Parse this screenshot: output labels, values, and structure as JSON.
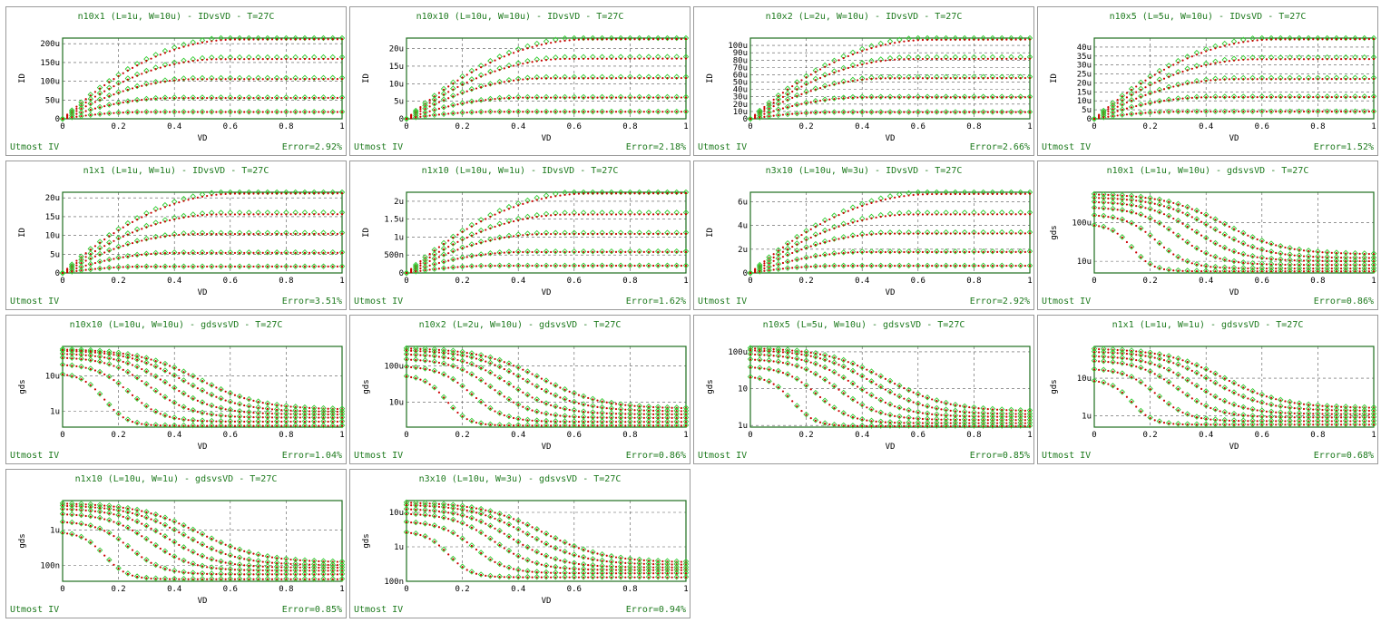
{
  "colors": {
    "measured": "#33cc33",
    "simulated": "#cc0000",
    "frame": "#1e6e1e",
    "text": "#1e7a1e"
  },
  "markers": {
    "measured": "diamond-icon",
    "simulated": "dot-icon"
  },
  "chart_data": [
    {
      "type": "line",
      "title": "n10x1 (L=1u, W=10u) - IDvsVD - T=27C",
      "xlabel": "VD",
      "ylabel": "ID",
      "scale": "linear",
      "ylim": [
        0,
        215
      ],
      "yticks": [
        0,
        50,
        100,
        150,
        200
      ],
      "yticklabels": [
        "0",
        "50u",
        "100u",
        "150u",
        "200u"
      ],
      "xlim": [
        0,
        1
      ],
      "xticks": [
        0,
        0.2,
        0.4,
        0.6,
        0.8,
        1
      ],
      "xticklabels": [
        "0",
        "0.2",
        "0.4",
        "0.6",
        "0.8",
        "1"
      ],
      "vdsat": [
        0.62,
        0.56,
        0.48,
        0.4,
        0.3
      ],
      "ysat": [
        210,
        158,
        105,
        55,
        18
      ],
      "footer_left": "Utmost IV",
      "footer_right": "Error=2.92%"
    },
    {
      "type": "line",
      "title": "n10x10 (L=10u, W=10u) - IDvsVD - T=27C",
      "xlabel": "VD",
      "ylabel": "ID",
      "scale": "linear",
      "ylim": [
        0,
        23
      ],
      "yticks": [
        0,
        5,
        10,
        15,
        20
      ],
      "yticklabels": [
        "0",
        "5u",
        "10u",
        "15u",
        "20u"
      ],
      "xlim": [
        0,
        1
      ],
      "xticks": [
        0,
        0.2,
        0.4,
        0.6,
        0.8,
        1
      ],
      "xticklabels": [
        "0",
        "0.2",
        "0.4",
        "0.6",
        "0.8",
        "1"
      ],
      "vdsat": [
        0.65,
        0.58,
        0.5,
        0.42,
        0.32
      ],
      "ysat": [
        22.5,
        17,
        11.5,
        6,
        2
      ],
      "footer_left": "Utmost IV",
      "footer_right": "Error=2.18%"
    },
    {
      "type": "line",
      "title": "n10x2 (L=2u, W=10u) - IDvsVD - T=27C",
      "xlabel": "VD",
      "ylabel": "ID",
      "scale": "linear",
      "ylim": [
        0,
        110
      ],
      "yticks": [
        0,
        10,
        20,
        30,
        40,
        50,
        60,
        70,
        80,
        90,
        100
      ],
      "yticklabels": [
        "0",
        "10u",
        "20u",
        "30u",
        "40u",
        "50u",
        "60u",
        "70u",
        "80u",
        "90u",
        "100u"
      ],
      "xlim": [
        0,
        1
      ],
      "xticks": [
        0,
        0.2,
        0.4,
        0.6,
        0.8,
        1
      ],
      "xticklabels": [
        "0",
        "0.2",
        "0.4",
        "0.6",
        "0.8",
        "1"
      ],
      "vdsat": [
        0.64,
        0.57,
        0.49,
        0.41,
        0.31
      ],
      "ysat": [
        107,
        81,
        55,
        29,
        9
      ],
      "footer_left": "Utmost IV",
      "footer_right": "Error=2.66%"
    },
    {
      "type": "line",
      "title": "n10x5 (L=5u, W=10u) - IDvsVD - T=27C",
      "xlabel": "VD",
      "ylabel": "ID",
      "scale": "linear",
      "ylim": [
        0,
        45
      ],
      "yticks": [
        0,
        5,
        10,
        15,
        20,
        25,
        30,
        35,
        40
      ],
      "yticklabels": [
        "0",
        "5u",
        "10u",
        "15u",
        "20u",
        "25u",
        "30u",
        "35u",
        "40u"
      ],
      "xlim": [
        0,
        1
      ],
      "xticks": [
        0,
        0.2,
        0.4,
        0.6,
        0.8,
        1
      ],
      "xticklabels": [
        "0",
        "0.2",
        "0.4",
        "0.6",
        "0.8",
        "1"
      ],
      "vdsat": [
        0.65,
        0.58,
        0.5,
        0.42,
        0.32
      ],
      "ysat": [
        44,
        33,
        22,
        12,
        4
      ],
      "footer_left": "Utmost IV",
      "footer_right": "Error=1.52%"
    },
    {
      "type": "line",
      "title": "n1x1 (L=1u, W=1u) - IDvsVD - T=27C",
      "xlabel": "VD",
      "ylabel": "ID",
      "scale": "linear",
      "ylim": [
        0,
        21.5
      ],
      "yticks": [
        0,
        5,
        10,
        15,
        20
      ],
      "yticklabels": [
        "0",
        "5u",
        "10u",
        "15u",
        "20u"
      ],
      "xlim": [
        0,
        1
      ],
      "xticks": [
        0,
        0.2,
        0.4,
        0.6,
        0.8,
        1
      ],
      "xticklabels": [
        "0",
        "0.2",
        "0.4",
        "0.6",
        "0.8",
        "1"
      ],
      "vdsat": [
        0.62,
        0.56,
        0.48,
        0.4,
        0.3
      ],
      "ysat": [
        21,
        15.5,
        10.3,
        5.3,
        1.7
      ],
      "footer_left": "Utmost IV",
      "footer_right": "Error=3.51%"
    },
    {
      "type": "line",
      "title": "n1x10 (L=10u, W=1u) - IDvsVD - T=27C",
      "xlabel": "VD",
      "ylabel": "ID",
      "scale": "linear",
      "ylim": [
        0,
        2.25
      ],
      "yticks": [
        0,
        0.5,
        1,
        1.5,
        2
      ],
      "yticklabels": [
        "0",
        "500n",
        "1u",
        "1.5u",
        "2u"
      ],
      "xlim": [
        0,
        1
      ],
      "xticks": [
        0,
        0.2,
        0.4,
        0.6,
        0.8,
        1
      ],
      "xticklabels": [
        "0",
        "0.2",
        "0.4",
        "0.6",
        "0.8",
        "1"
      ],
      "vdsat": [
        0.65,
        0.58,
        0.5,
        0.42,
        0.32
      ],
      "ysat": [
        2.2,
        1.62,
        1.08,
        0.58,
        0.2
      ],
      "footer_left": "Utmost IV",
      "footer_right": "Error=1.62%"
    },
    {
      "type": "line",
      "title": "n3x10 (L=10u, W=3u) - IDvsVD - T=27C",
      "xlabel": "VD",
      "ylabel": "ID",
      "scale": "linear",
      "ylim": [
        0,
        6.8
      ],
      "yticks": [
        0,
        2,
        4,
        6
      ],
      "yticklabels": [
        "0",
        "2u",
        "4u",
        "6u"
      ],
      "xlim": [
        0,
        1
      ],
      "xticks": [
        0,
        0.2,
        0.4,
        0.6,
        0.8,
        1
      ],
      "xticklabels": [
        "0",
        "0.2",
        "0.4",
        "0.6",
        "0.8",
        "1"
      ],
      "vdsat": [
        0.65,
        0.58,
        0.5,
        0.42,
        0.32
      ],
      "ysat": [
        6.6,
        4.9,
        3.3,
        1.75,
        0.6
      ],
      "footer_left": "Utmost IV",
      "footer_right": "Error=2.92%"
    },
    {
      "type": "line",
      "title": "n10x1 (L=1u, W=10u) - gdsvsVD - T=27C",
      "xlabel": "VD",
      "ylabel": "gds",
      "scale": "log",
      "ylim": [
        5,
        600
      ],
      "yticks": [
        10,
        100
      ],
      "yticklabels": [
        "10u",
        "100u"
      ],
      "xlim": [
        0,
        1
      ],
      "xticks": [
        0,
        0.2,
        0.4,
        0.6,
        0.8,
        1
      ],
      "xticklabels": [
        "0",
        "0.2",
        "0.4",
        "0.6",
        "0.8",
        "1"
      ],
      "vdsat": [
        0.62,
        0.56,
        0.48,
        0.4,
        0.3,
        0.18
      ],
      "ysat": [
        15,
        12,
        10,
        8,
        6.5,
        5.5
      ],
      "ystart": [
        550,
        450,
        350,
        250,
        160,
        90
      ],
      "footer_left": "Utmost IV",
      "footer_right": "Error=0.86%"
    },
    {
      "type": "line",
      "title": "n10x10 (L=10u, W=10u) - gdsvsVD - T=27C",
      "xlabel": "VD",
      "ylabel": "gds",
      "scale": "log",
      "ylim": [
        0.35,
        70
      ],
      "yticks": [
        1,
        10
      ],
      "yticklabels": [
        "1u",
        "10u"
      ],
      "xlim": [
        0,
        1
      ],
      "xticks": [
        0,
        0.2,
        0.4,
        0.6,
        0.8,
        1
      ],
      "xticklabels": [
        "0",
        "0.2",
        "0.4",
        "0.6",
        "0.8",
        "1"
      ],
      "vdsat": [
        0.65,
        0.58,
        0.5,
        0.42,
        0.32,
        0.2
      ],
      "ysat": [
        1.1,
        0.95,
        0.8,
        0.65,
        0.5,
        0.38
      ],
      "ystart": [
        60,
        55,
        45,
        35,
        22,
        12
      ],
      "footer_left": "Utmost IV",
      "footer_right": "Error=1.04%"
    },
    {
      "type": "line",
      "title": "n10x2 (L=2u, W=10u) - gdsvsVD - T=27C",
      "xlabel": "VD",
      "ylabel": "gds",
      "scale": "log",
      "ylim": [
        2,
        350
      ],
      "yticks": [
        10,
        100
      ],
      "yticklabels": [
        "10u",
        "100u"
      ],
      "xlim": [
        0,
        1
      ],
      "xticks": [
        0,
        0.2,
        0.4,
        0.6,
        0.8,
        1
      ],
      "xticklabels": [
        "0",
        "0.2",
        "0.4",
        "0.6",
        "0.8",
        "1"
      ],
      "vdsat": [
        0.64,
        0.57,
        0.49,
        0.41,
        0.31,
        0.19
      ],
      "ysat": [
        6.5,
        5.5,
        4.5,
        3.6,
        2.8,
        2.2
      ],
      "ystart": [
        320,
        280,
        220,
        160,
        100,
        55
      ],
      "footer_left": "Utmost IV",
      "footer_right": "Error=0.86%"
    },
    {
      "type": "line",
      "title": "n10x5 (L=5u, W=10u) - gdsvsVD - T=27C",
      "xlabel": "VD",
      "ylabel": "gds",
      "scale": "log",
      "ylim": [
        0.9,
        140
      ],
      "yticks": [
        1,
        10,
        100
      ],
      "yticklabels": [
        "1u",
        "10",
        "100u"
      ],
      "xlim": [
        0,
        1
      ],
      "xticks": [
        0,
        0.2,
        0.4,
        0.6,
        0.8,
        1
      ],
      "xticklabels": [
        "0",
        "0.2",
        "0.4",
        "0.6",
        "0.8",
        "1"
      ],
      "vdsat": [
        0.65,
        0.58,
        0.5,
        0.42,
        0.32,
        0.2
      ],
      "ysat": [
        2.4,
        2,
        1.7,
        1.4,
        1.15,
        0.95
      ],
      "ystart": [
        130,
        115,
        90,
        65,
        40,
        22
      ],
      "footer_left": "Utmost IV",
      "footer_right": "Error=0.85%"
    },
    {
      "type": "line",
      "title": "n1x1 (L=1u, W=1u) - gdsvsVD - T=27C",
      "xlabel": "VD",
      "ylabel": "gds",
      "scale": "log",
      "ylim": [
        0.5,
        70
      ],
      "yticks": [
        1,
        10
      ],
      "yticklabels": [
        "1u",
        "10u"
      ],
      "xlim": [
        0,
        1
      ],
      "xticks": [
        0,
        0.2,
        0.4,
        0.6,
        0.8,
        1
      ],
      "xticklabels": [
        "0",
        "0.2",
        "0.4",
        "0.6",
        "0.8",
        "1"
      ],
      "vdsat": [
        0.62,
        0.56,
        0.48,
        0.4,
        0.3,
        0.18
      ],
      "ysat": [
        1.6,
        1.35,
        1.1,
        0.9,
        0.72,
        0.58
      ],
      "ystart": [
        62,
        52,
        40,
        30,
        18,
        9
      ],
      "footer_left": "Utmost IV",
      "footer_right": "Error=0.68%"
    },
    {
      "type": "line",
      "title": "n1x10 (L=10u, W=1u) - gdsvsVD - T=27C",
      "xlabel": "VD",
      "ylabel": "gds",
      "scale": "log",
      "ylim": [
        0.035,
        7
      ],
      "yticks": [
        0.1,
        1
      ],
      "yticklabels": [
        "100n",
        "1u"
      ],
      "xlim": [
        0,
        1
      ],
      "xticks": [
        0,
        0.2,
        0.4,
        0.6,
        0.8,
        1
      ],
      "xticklabels": [
        "0",
        "0.2",
        "0.4",
        "0.6",
        "0.8",
        "1"
      ],
      "vdsat": [
        0.65,
        0.58,
        0.5,
        0.42,
        0.32,
        0.2
      ],
      "ysat": [
        0.12,
        0.1,
        0.085,
        0.07,
        0.055,
        0.04
      ],
      "ystart": [
        6,
        5.2,
        4.2,
        3,
        1.8,
        0.9
      ],
      "footer_left": "Utmost IV",
      "footer_right": "Error=0.85%"
    },
    {
      "type": "line",
      "title": "n3x10 (L=10u, W=3u) - gdsvsVD - T=27C",
      "xlabel": "VD",
      "ylabel": "gds",
      "scale": "log",
      "ylim": [
        0.1,
        22
      ],
      "yticks": [
        0.1,
        1,
        10
      ],
      "yticklabels": [
        "100n",
        "1u",
        "10u"
      ],
      "xlim": [
        0,
        1
      ],
      "xticks": [
        0,
        0.2,
        0.4,
        0.6,
        0.8,
        1
      ],
      "xticklabels": [
        "0",
        "0.2",
        "0.4",
        "0.6",
        "0.8",
        "1"
      ],
      "vdsat": [
        0.65,
        0.58,
        0.5,
        0.42,
        0.32,
        0.2
      ],
      "ysat": [
        0.35,
        0.3,
        0.25,
        0.21,
        0.17,
        0.13
      ],
      "ystart": [
        20,
        17,
        13,
        9.5,
        5.5,
        2.8
      ],
      "footer_left": "Utmost IV",
      "footer_right": "Error=0.94%"
    }
  ]
}
